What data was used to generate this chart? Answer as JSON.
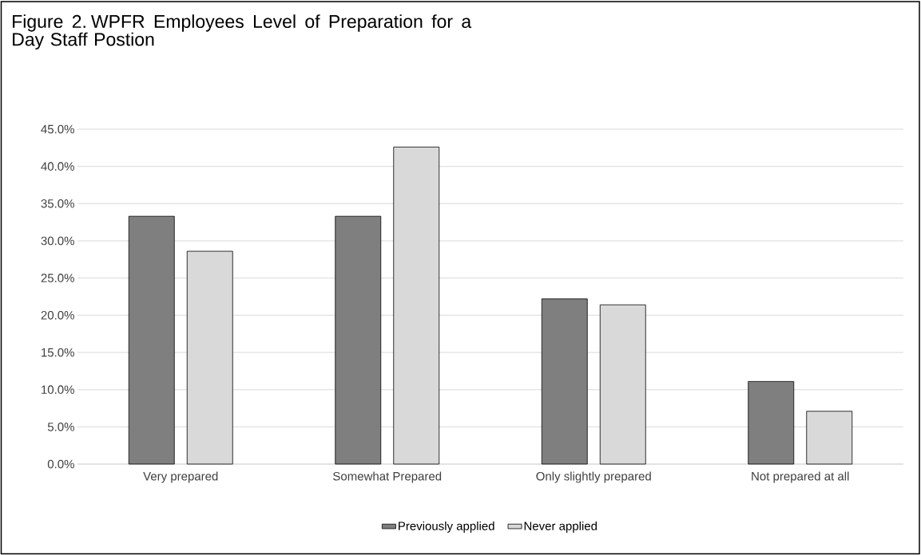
{
  "chart_data": {
    "type": "bar",
    "title": "Figure 2. WPFR Employees Level of Preparation for a Day Staff Postion",
    "categories": [
      "Very prepared",
      "Somewhat Prepared",
      "Only slightly prepared",
      "Not prepared at all"
    ],
    "series": [
      {
        "name": "Previously applied",
        "color": "#7f7f7f",
        "values": [
          33.3,
          33.3,
          22.2,
          11.1
        ]
      },
      {
        "name": "Never applied",
        "color": "#d9d9d9",
        "values": [
          28.6,
          42.6,
          21.4,
          7.1
        ]
      }
    ],
    "ylim": [
      0,
      45
    ],
    "yticks": [
      {
        "value": 0,
        "label": "0.0%"
      },
      {
        "value": 5,
        "label": "5.0%"
      },
      {
        "value": 10,
        "label": "10.0%"
      },
      {
        "value": 15,
        "label": "15.0%"
      },
      {
        "value": 20,
        "label": "20.0%"
      },
      {
        "value": 25,
        "label": "25.0%"
      },
      {
        "value": 30,
        "label": "30.0%"
      },
      {
        "value": 35,
        "label": "35.0%"
      },
      {
        "value": 40,
        "label": "40.0%"
      },
      {
        "value": 45,
        "label": "45.0%"
      }
    ],
    "grid": "y",
    "legend": "bottom"
  }
}
